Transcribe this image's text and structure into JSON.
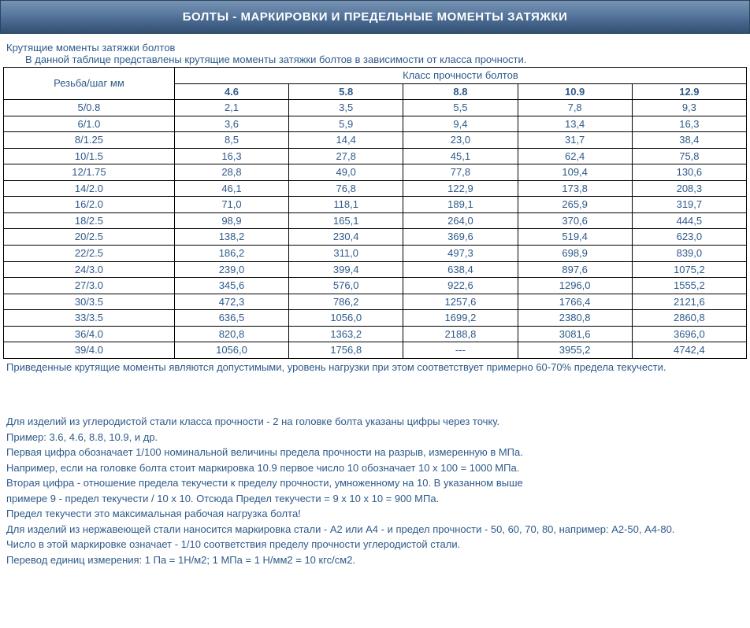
{
  "banner_title": "БОЛТЫ - МАРКИРОВКИ И ПРЕДЕЛЬНЫЕ МОМЕНТЫ ЗАТЯЖКИ",
  "subtitle": "Крутящие моменты затяжки болтов",
  "intro": "В данной таблице представлены крутящие моменты затяжки болтов в зависимости от класса прочности.",
  "table": {
    "thread_header": "Резьба/шаг мм",
    "class_header": "Класс прочности болтов",
    "classes": [
      "4.6",
      "5.8",
      "8.8",
      "10.9",
      "12.9"
    ],
    "rows": [
      {
        "thread": "5/0.8",
        "v": [
          "2,1",
          "3,5",
          "5,5",
          "7,8",
          "9,3"
        ]
      },
      {
        "thread": "6/1.0",
        "v": [
          "3,6",
          "5,9",
          "9,4",
          "13,4",
          "16,3"
        ]
      },
      {
        "thread": "8/1.25",
        "v": [
          "8,5",
          "14,4",
          "23,0",
          "31,7",
          "38,4"
        ]
      },
      {
        "thread": "10/1.5",
        "v": [
          "16,3",
          "27,8",
          "45,1",
          "62,4",
          "75,8"
        ]
      },
      {
        "thread": "12/1.75",
        "v": [
          "28,8",
          "49,0",
          "77,8",
          "109,4",
          "130,6"
        ]
      },
      {
        "thread": "14/2.0",
        "v": [
          "46,1",
          "76,8",
          "122,9",
          "173,8",
          "208,3"
        ]
      },
      {
        "thread": "16/2.0",
        "v": [
          "71,0",
          "118,1",
          "189,1",
          "265,9",
          "319,7"
        ]
      },
      {
        "thread": "18/2.5",
        "v": [
          "98,9",
          "165,1",
          "264,0",
          "370,6",
          "444,5"
        ]
      },
      {
        "thread": "20/2.5",
        "v": [
          "138,2",
          "230,4",
          "369,6",
          "519,4",
          "623,0"
        ]
      },
      {
        "thread": "22/2.5",
        "v": [
          "186,2",
          "311,0",
          "497,3",
          "698,9",
          "839,0"
        ]
      },
      {
        "thread": "24/3.0",
        "v": [
          "239,0",
          "399,4",
          "638,4",
          "897,6",
          "1075,2"
        ]
      },
      {
        "thread": "27/3.0",
        "v": [
          "345,6",
          "576,0",
          "922,6",
          "1296,0",
          "1555,2"
        ]
      },
      {
        "thread": "30/3.5",
        "v": [
          "472,3",
          "786,2",
          "1257,6",
          "1766,4",
          "2121,6"
        ]
      },
      {
        "thread": "33/3.5",
        "v": [
          "636,5",
          "1056,0",
          "1699,2",
          "2380,8",
          "2860,8"
        ]
      },
      {
        "thread": "36/4.0",
        "v": [
          "820,8",
          "1363,2",
          "2188,8",
          "3081,6",
          "3696,0"
        ]
      },
      {
        "thread": "39/4.0",
        "v": [
          "1056,0",
          "1756,8",
          "---",
          "3955,2",
          "4742,4"
        ]
      }
    ]
  },
  "note": "Приведенные крутящие моменты являются допустимыми, уровень нагрузки при этом соответствует примерно 60-70% предела текучести.",
  "explain": [
    "Для изделий из углеродистой стали класса прочности - 2 на головке болта указаны цифры через точку.",
    "Пример: 3.6, 4.6, 8.8, 10.9, и др.",
    "Первая цифра обозначает 1/100 номинальной величины предела прочности на разрыв, измеренную в МПа.",
    "Например, если на головке болта стоит маркировка 10.9 первое число 10 обозначает 10 х 100 = 1000 МПа.",
    "Вторая цифра - отношение предела текучести к пределу прочности, умноженному на 10. В указанном выше",
    "примере 9 - предел текучести / 10 х 10. Отсюда Предел текучести = 9 х 10 х 10 = 900 МПа.",
    "Предел текучести это максимальная рабочая нагрузка болта!",
    "Для изделий из нержавеющей стали наносится маркировка стали - А2 или А4 - и предел прочности - 50, 60, 70, 80, например: А2-50, А4-80.",
    "Число в этой маркировке означает - 1/10 соответствия пределу прочности углеродистой стали.",
    "Перевод единиц измерения: 1 Па = 1Н/м2; 1 МПа = 1 Н/мм2 = 10 кгс/см2."
  ]
}
